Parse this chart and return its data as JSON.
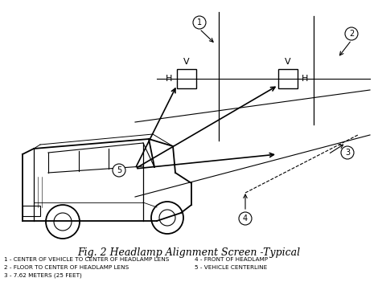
{
  "title": "Fig. 2 Headlamp Alignment Screen -Typical",
  "title_fontsize": 9,
  "background_color": "#ffffff",
  "line_color": "#000000",
  "legend_items": [
    "1 - CENTER OF VEHICLE TO CENTER OF HEADLAMP LENS",
    "2 - FLOOR TO CENTER OF HEADLAMP LENS",
    "3 - 7.62 METERS (25 FEET)"
  ],
  "legend_items_right": [
    "4 - FRONT OF HEADLAMP",
    "5 - VEHICLE CENTERLINE"
  ],
  "figsize": [
    4.7,
    3.56
  ],
  "dpi": 100
}
